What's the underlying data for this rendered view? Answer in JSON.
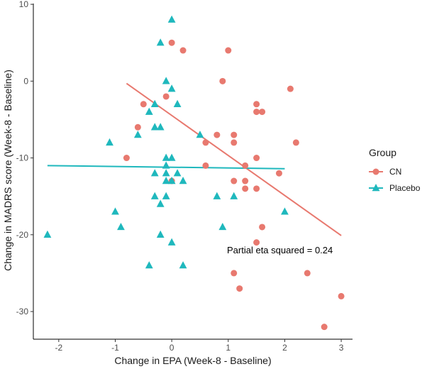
{
  "chart_data": {
    "type": "scatter",
    "title": "",
    "xlabel": "Change in EPA (Week-8 - Baseline)",
    "ylabel": "Change in MADRS score (Week-8 - Baseline)",
    "xlim": [
      -2.45,
      3.2
    ],
    "ylim": [
      -33.6,
      10.1
    ],
    "xticks": [
      -2,
      -1,
      0,
      1,
      2,
      3
    ],
    "yticks": [
      -30,
      -20,
      -10,
      0,
      10
    ],
    "grid": false,
    "legend": {
      "title": "Group",
      "placement": "right",
      "entries": [
        {
          "name": "CN",
          "marker": "circle"
        },
        {
          "name": "Placebo",
          "marker": "triangle"
        }
      ]
    },
    "annotation": "Partial eta squared = 0.24",
    "colors": {
      "CN": "#E8796F",
      "Placebo": "#1FB8BD"
    },
    "series": [
      {
        "name": "CN",
        "marker": "circle",
        "points": [
          [
            0.0,
            5
          ],
          [
            0.2,
            4
          ],
          [
            1.0,
            4
          ],
          [
            0.9,
            0
          ],
          [
            2.1,
            -1
          ],
          [
            -0.1,
            -2
          ],
          [
            -0.5,
            -3
          ],
          [
            1.5,
            -3
          ],
          [
            1.5,
            -4
          ],
          [
            1.6,
            -4
          ],
          [
            -0.6,
            -6
          ],
          [
            0.8,
            -7
          ],
          [
            1.1,
            -7
          ],
          [
            0.6,
            -8
          ],
          [
            1.1,
            -8
          ],
          [
            2.2,
            -8
          ],
          [
            -0.8,
            -10
          ],
          [
            1.5,
            -10
          ],
          [
            0.6,
            -11
          ],
          [
            1.3,
            -11
          ],
          [
            1.9,
            -12
          ],
          [
            0.0,
            -13
          ],
          [
            1.1,
            -13
          ],
          [
            1.3,
            -13
          ],
          [
            1.3,
            -14
          ],
          [
            1.5,
            -14
          ],
          [
            1.6,
            -19
          ],
          [
            1.5,
            -21
          ],
          [
            1.1,
            -25
          ],
          [
            2.4,
            -25
          ],
          [
            1.2,
            -27
          ],
          [
            3.0,
            -28
          ],
          [
            2.7,
            -32
          ]
        ],
        "fit": {
          "x": [
            -0.8,
            3.0
          ],
          "y": [
            -0.3,
            -20.1
          ]
        }
      },
      {
        "name": "Placebo",
        "marker": "triangle",
        "points": [
          [
            0.0,
            8
          ],
          [
            -0.2,
            5
          ],
          [
            -0.1,
            0
          ],
          [
            0.0,
            -1
          ],
          [
            -0.3,
            -3
          ],
          [
            0.1,
            -3
          ],
          [
            -0.4,
            -4
          ],
          [
            -0.3,
            -6
          ],
          [
            -0.2,
            -6
          ],
          [
            -0.6,
            -7
          ],
          [
            0.5,
            -7
          ],
          [
            -1.1,
            -8
          ],
          [
            -0.1,
            -10
          ],
          [
            0.0,
            -10
          ],
          [
            -0.1,
            -11
          ],
          [
            -0.3,
            -12
          ],
          [
            -0.1,
            -12
          ],
          [
            0.1,
            -12
          ],
          [
            -0.1,
            -13
          ],
          [
            0.0,
            -13
          ],
          [
            0.2,
            -13
          ],
          [
            -0.3,
            -15
          ],
          [
            -0.1,
            -15
          ],
          [
            0.8,
            -15
          ],
          [
            1.1,
            -15
          ],
          [
            -0.2,
            -16
          ],
          [
            -1.0,
            -17
          ],
          [
            2.0,
            -17
          ],
          [
            -0.9,
            -19
          ],
          [
            0.9,
            -19
          ],
          [
            -2.2,
            -20
          ],
          [
            -0.2,
            -20
          ],
          [
            0.0,
            -21
          ],
          [
            -0.4,
            -24
          ],
          [
            0.2,
            -24
          ]
        ],
        "fit": {
          "x": [
            -2.2,
            2.0
          ],
          "y": [
            -11.0,
            -11.4
          ]
        }
      }
    ]
  }
}
